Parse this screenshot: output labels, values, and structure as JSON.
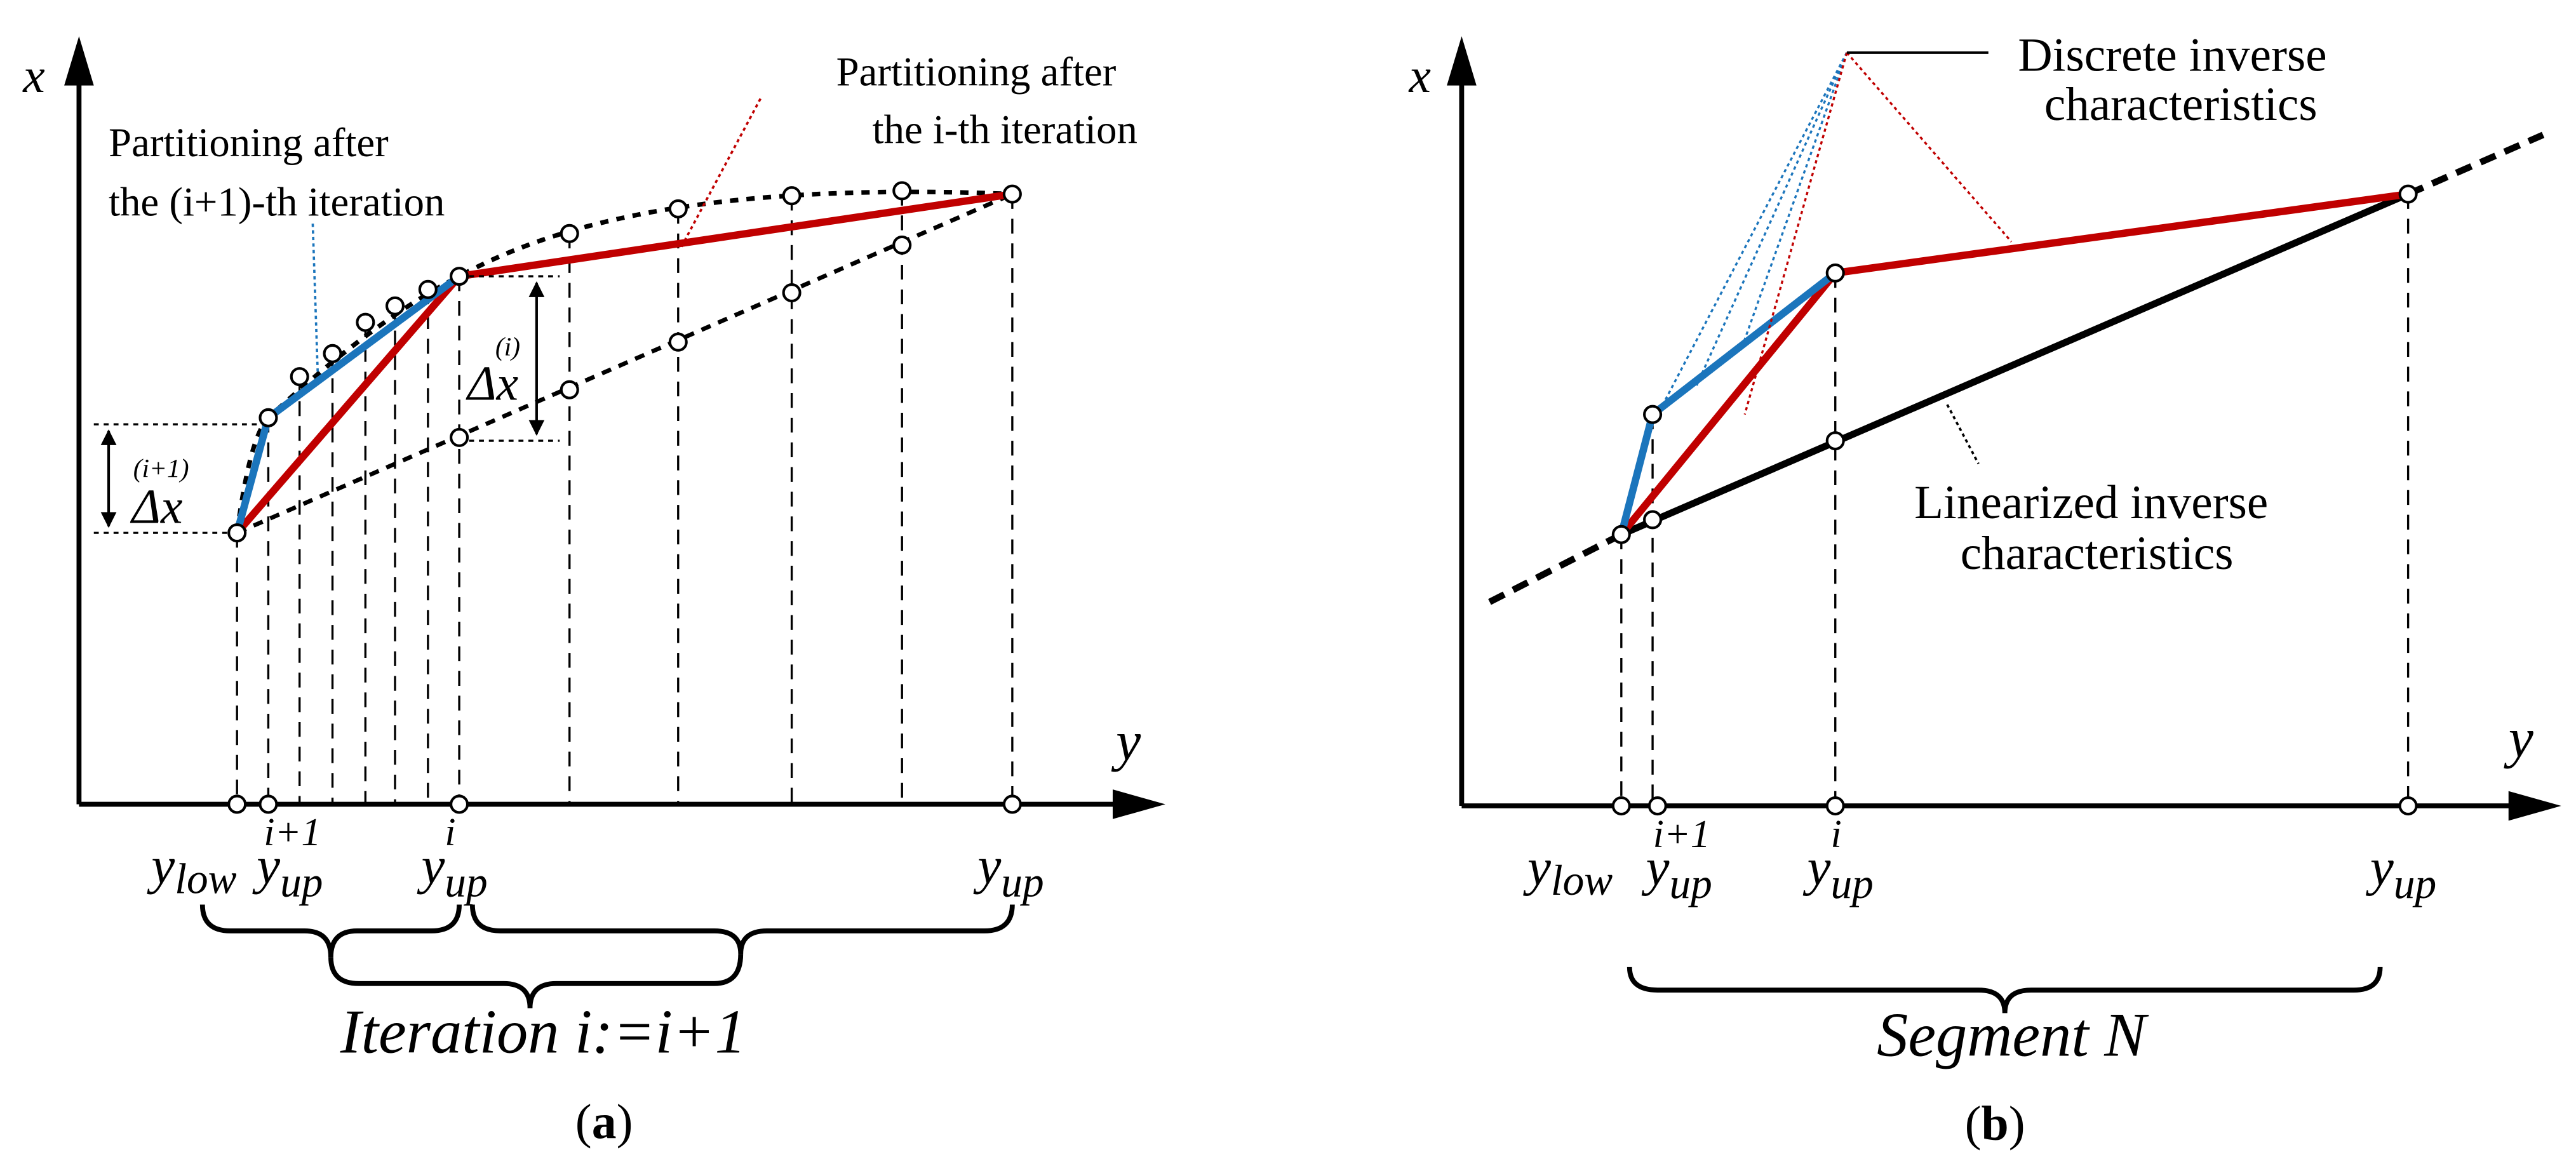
{
  "figure": {
    "panel_a": {
      "label_open": "(",
      "label_letter": "a",
      "label_close": ")",
      "axis_x_label": "x",
      "axis_y_label": "y",
      "annotation_blue_line1": "Partitioning after",
      "annotation_blue_line2": "the (i+1)-th iteration",
      "annotation_red_line1": "Partitioning after",
      "annotation_red_line2": "the i-th iteration",
      "delta_i": {
        "symbol": "Δx",
        "superscript": "(i)"
      },
      "delta_i1": {
        "symbol": "Δx",
        "superscript": "(i+1)"
      },
      "tick_ylow": {
        "base": "y",
        "sub": "low"
      },
      "tick_yup_i1": {
        "base": "y",
        "sub": "up",
        "sup": "i+1"
      },
      "tick_yup_i": {
        "base": "y",
        "sub": "up",
        "sup": "i"
      },
      "tick_yup": {
        "base": "y",
        "sub": "up"
      },
      "brace_caption": "Iteration i:=i+1"
    },
    "panel_b": {
      "label_open": "(",
      "label_letter": "b",
      "label_close": ")",
      "axis_x_label": "x",
      "axis_y_label": "y",
      "annotation_discrete_line1": "Discrete inverse",
      "annotation_discrete_line2": "characteristics",
      "annotation_linear_line1": "Linearized inverse",
      "annotation_linear_line2": "characteristics",
      "tick_ylow": {
        "base": "y",
        "sub": "low"
      },
      "tick_yup_i1": {
        "base": "y",
        "sub": "up",
        "sup": "i+1"
      },
      "tick_yup_i": {
        "base": "y",
        "sub": "up",
        "sup": "i"
      },
      "tick_yup": {
        "base": "y",
        "sub": "up"
      },
      "brace_caption": "Segment N"
    },
    "colors": {
      "red_partition": "#c00000",
      "blue_partition": "#1b75bc",
      "curve": "#000000",
      "blue_leader": "#1b75bc",
      "red_leader": "#c00000"
    }
  }
}
